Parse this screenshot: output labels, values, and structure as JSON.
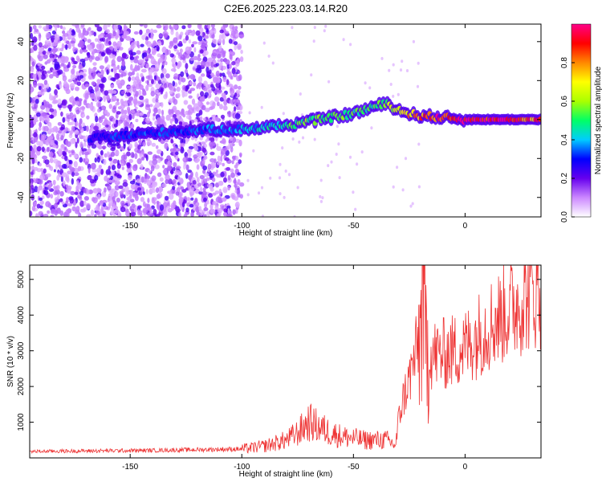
{
  "title": "C2E6.2025.223.03.14.R20",
  "chart_data": [
    {
      "type": "heatmap",
      "title": "C2E6.2025.223.03.14.R20",
      "xlabel": "Height of straight line (km)",
      "ylabel": "Frequency (Hz)",
      "xlim": [
        -195,
        34
      ],
      "ylim": [
        -50,
        49
      ],
      "xticks": [
        -150,
        -100,
        -50,
        0
      ],
      "yticks": [
        -40,
        -20,
        0,
        20,
        40
      ],
      "colorbar": {
        "label": "Normalized spectral amplitude",
        "range": [
          0,
          1
        ],
        "ticks": [
          0.0,
          0.2,
          0.4,
          0.6,
          0.8
        ],
        "colors": [
          "#ffffff",
          "#cc88ff",
          "#6600ee",
          "#0000ff",
          "#00ccff",
          "#00ff66",
          "#aaff00",
          "#ffff00",
          "#ff8800",
          "#ff0000",
          "#ff0088"
        ]
      },
      "ridge": {
        "x": [
          -168,
          -150,
          -130,
          -110,
          -100,
          -90,
          -80,
          -70,
          -60,
          -50,
          -40,
          -35,
          -30,
          -25,
          -20,
          -10,
          0,
          10,
          20,
          34
        ],
        "freq": [
          -10,
          -8,
          -6,
          -5,
          -5,
          -4,
          -3,
          -1,
          1,
          3,
          7,
          8,
          5,
          3,
          2,
          1,
          0,
          0,
          0,
          0
        ],
        "amplitude": [
          0.3,
          0.32,
          0.33,
          0.35,
          0.38,
          0.42,
          0.5,
          0.55,
          0.55,
          0.5,
          0.5,
          0.6,
          0.7,
          0.75,
          0.8,
          0.92,
          0.96,
          0.95,
          0.9,
          0.85
        ]
      }
    },
    {
      "type": "line",
      "xlabel": "Height of straight line (km)",
      "ylabel": "SNR (10 * v/v)",
      "xlim": [
        -195,
        34
      ],
      "ylim": [
        0,
        5400
      ],
      "xticks": [
        -150,
        -100,
        -50,
        0
      ],
      "yticks": [
        1000,
        2000,
        3000,
        4000,
        5000
      ],
      "color": "#ee3333",
      "series": [
        {
          "x": [
            -195,
            -180,
            -160,
            -140,
            -120,
            -100,
            -90,
            -80,
            -75,
            -70,
            -65,
            -60,
            -55,
            -50,
            -45,
            -40,
            -35,
            -31,
            -30,
            -28,
            -25,
            -23,
            -20,
            -19,
            -18,
            -15,
            -10,
            -5,
            0,
            5,
            10,
            15,
            20,
            25,
            30,
            34
          ],
          "y": [
            180,
            190,
            200,
            210,
            230,
            250,
            330,
            500,
            700,
            1000,
            850,
            700,
            600,
            550,
            500,
            500,
            500,
            350,
            1000,
            1600,
            2200,
            2700,
            3400,
            5200,
            3200,
            2900,
            2900,
            3000,
            3100,
            3400,
            3700,
            3900,
            4200,
            4400,
            4650,
            4700
          ]
        }
      ]
    }
  ]
}
